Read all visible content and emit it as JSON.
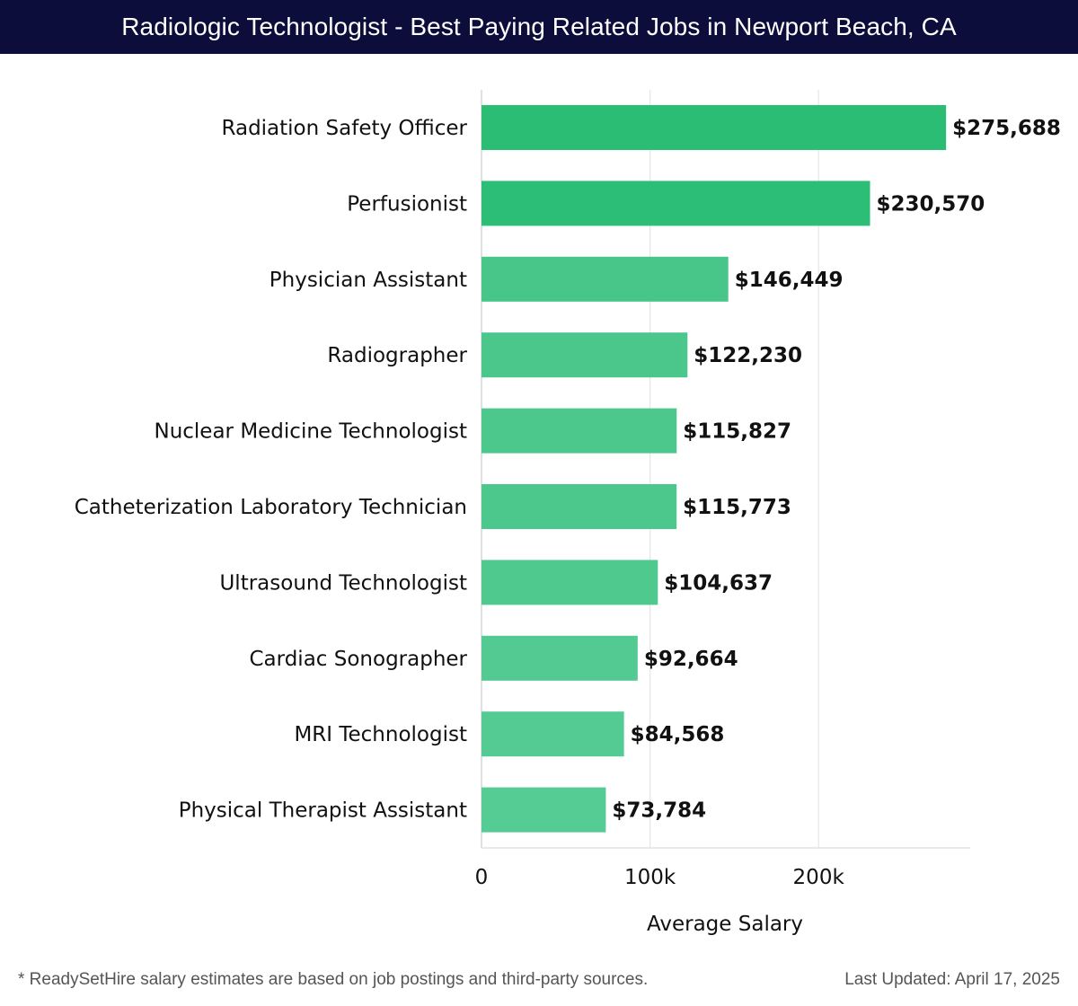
{
  "header": {
    "title": "Radiologic Technologist - Best Paying Related Jobs in Newport Beach, CA"
  },
  "chart_data": {
    "type": "bar",
    "orientation": "horizontal",
    "title": "Radiologic Technologist - Best Paying Related Jobs in Newport Beach, CA",
    "xlabel": "Average Salary",
    "ylabel": "",
    "xlim": [
      0,
      290000
    ],
    "xticks": [
      0,
      100000,
      200000
    ],
    "xtick_labels": [
      "0",
      "100k",
      "200k"
    ],
    "grid": "vertical",
    "categories": [
      "Radiation Safety Officer",
      "Perfusionist",
      "Physician Assistant",
      "Radiographer",
      "Nuclear Medicine Technologist",
      "Catheterization Laboratory Technician",
      "Ultrasound Technologist",
      "Cardiac Sonographer",
      "MRI Technologist",
      "Physical Therapist Assistant"
    ],
    "values": [
      275688,
      230570,
      146449,
      122230,
      115827,
      115773,
      104637,
      92664,
      84568,
      73784
    ],
    "value_labels": [
      "$275,688",
      "$230,570",
      "$146,449",
      "$122,230",
      "$115,827",
      "$115,773",
      "$104,637",
      "$92,664",
      "$84,568",
      "$73,784"
    ],
    "colors": [
      "#2bbd74",
      "#2cbe76",
      "#48c68a",
      "#4bc78b",
      "#4cc88c",
      "#4cc88c",
      "#4fc98e",
      "#52ca91",
      "#54cb93",
      "#56cc95"
    ]
  },
  "footer": {
    "note": "* ReadySetHire salary estimates are based on job postings and third-party sources.",
    "updated": "Last Updated: April 17, 2025"
  }
}
